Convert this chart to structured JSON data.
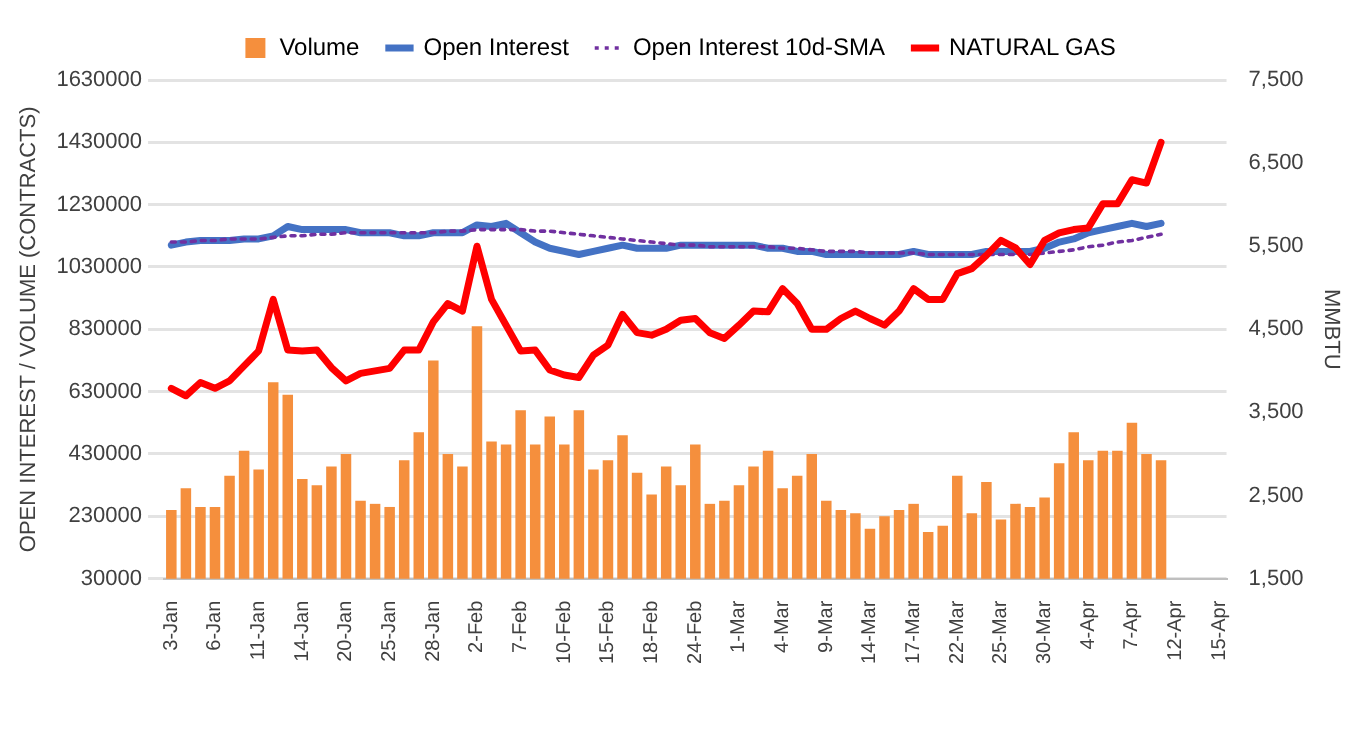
{
  "chart_data": {
    "type": "bar",
    "ylabel": "OPEN INTEREST / VOLUME (CONTRACTS)",
    "y2label": "MMBTU",
    "categories": [
      "3-Jan",
      null,
      null,
      "6-Jan",
      null,
      null,
      "11-Jan",
      null,
      null,
      "14-Jan",
      null,
      null,
      "20-Jan",
      null,
      null,
      "25-Jan",
      null,
      null,
      "28-Jan",
      null,
      null,
      "2-Feb",
      null,
      null,
      "7-Feb",
      null,
      null,
      "10-Feb",
      null,
      null,
      "15-Feb",
      null,
      null,
      "18-Feb",
      null,
      null,
      "24-Feb",
      null,
      null,
      "1-Mar",
      null,
      null,
      "4-Mar",
      null,
      null,
      "9-Mar",
      null,
      null,
      "14-Mar",
      null,
      null,
      "17-Mar",
      null,
      null,
      "22-Mar",
      null,
      null,
      "25-Mar",
      null,
      null,
      "30-Mar",
      null,
      null,
      "4-Apr",
      null,
      null,
      "7-Apr",
      null,
      null,
      "12-Apr",
      null,
      null,
      "15-Apr"
    ],
    "series": [
      {
        "name": "Volume",
        "color": "#f58f3d",
        "values": [
          250000,
          320000,
          260000,
          260000,
          360000,
          440000,
          380000,
          660000,
          620000,
          350000,
          330000,
          390000,
          430000,
          280000,
          270000,
          260000,
          410000,
          500000,
          730000,
          430000,
          390000,
          840000,
          470000,
          460000,
          570000,
          460000,
          550000,
          460000,
          570000,
          380000,
          410000,
          490000,
          370000,
          300000,
          390000,
          330000,
          460000,
          270000,
          280000,
          330000,
          390000,
          440000,
          320000,
          360000,
          430000,
          280000,
          250000,
          240000,
          190000,
          230000,
          250000,
          270000,
          180000,
          200000,
          360000,
          240000,
          340000,
          220000,
          270000,
          260000,
          290000,
          400000,
          500000,
          410000,
          440000,
          440000,
          530000,
          430000,
          410000,
          null,
          null,
          null,
          null
        ]
      },
      {
        "name": "Open Interest",
        "type": "line",
        "color": "#4472c4",
        "line_style": "solid",
        "values": [
          1100000,
          1110000,
          1115000,
          1115000,
          1115000,
          1120000,
          1120000,
          1130000,
          1160000,
          1150000,
          1150000,
          1150000,
          1150000,
          1140000,
          1140000,
          1140000,
          1130000,
          1130000,
          1140000,
          1140000,
          1140000,
          1165000,
          1160000,
          1170000,
          1140000,
          1110000,
          1090000,
          1080000,
          1070000,
          1080000,
          1090000,
          1100000,
          1090000,
          1090000,
          1090000,
          1100000,
          1100000,
          1100000,
          1100000,
          1100000,
          1100000,
          1090000,
          1090000,
          1080000,
          1080000,
          1070000,
          1070000,
          1070000,
          1070000,
          1070000,
          1070000,
          1080000,
          1070000,
          1070000,
          1070000,
          1070000,
          1080000,
          1080000,
          1080000,
          1080000,
          1090000,
          1110000,
          1120000,
          1140000,
          1150000,
          1160000,
          1170000,
          1160000,
          1170000,
          null,
          null,
          null,
          null
        ]
      },
      {
        "name": "Open Interest 10d-SMA",
        "type": "line",
        "color": "#7030a0",
        "line_style": "dotted",
        "values": [
          1110000,
          1110000,
          1115000,
          1115000,
          1120000,
          1120000,
          1120000,
          1125000,
          1130000,
          1130000,
          1135000,
          1135000,
          1140000,
          1140000,
          1140000,
          1140000,
          1140000,
          1140000,
          1140000,
          1145000,
          1145000,
          1150000,
          1150000,
          1150000,
          1150000,
          1145000,
          1145000,
          1140000,
          1135000,
          1130000,
          1125000,
          1120000,
          1115000,
          1110000,
          1105000,
          1100000,
          1100000,
          1095000,
          1095000,
          1095000,
          1095000,
          1095000,
          1090000,
          1090000,
          1085000,
          1080000,
          1080000,
          1080000,
          1075000,
          1075000,
          1075000,
          1075000,
          1070000,
          1070000,
          1070000,
          1070000,
          1070000,
          1070000,
          1070000,
          1070000,
          1075000,
          1080000,
          1085000,
          1095000,
          1100000,
          1110000,
          1115000,
          1125000,
          1135000,
          null,
          null,
          null,
          null
        ]
      },
      {
        "name": "NATURAL GAS",
        "type": "line",
        "color": "#ff0000",
        "line_style": "solid",
        "axis": "y2",
        "values": [
          3790,
          3700,
          3860,
          3790,
          3880,
          4060,
          4240,
          4860,
          4250,
          4240,
          4250,
          4040,
          3880,
          3970,
          4000,
          4030,
          4250,
          4250,
          4590,
          4810,
          4720,
          5500,
          4860,
          4550,
          4240,
          4250,
          4010,
          3950,
          3920,
          4190,
          4310,
          4680,
          4460,
          4430,
          4500,
          4610,
          4630,
          4460,
          4390,
          4550,
          4720,
          4710,
          4990,
          4810,
          4500,
          4500,
          4630,
          4720,
          4630,
          4550,
          4720,
          4990,
          4860,
          4860,
          5170,
          5230,
          5390,
          5570,
          5480,
          5280,
          5570,
          5660,
          5700,
          5720,
          6010,
          6010,
          6300,
          6260,
          6750,
          null,
          null,
          null,
          null
        ]
      }
    ],
    "ylim": [
      30000,
      1630000
    ],
    "yticks": [
      30000,
      230000,
      430000,
      630000,
      830000,
      1030000,
      1230000,
      1430000,
      1630000
    ],
    "y2lim": [
      1500,
      7500
    ],
    "y2ticks": [
      {
        "value": 1500,
        "label": "1,500"
      },
      {
        "value": 2500,
        "label": "2,500"
      },
      {
        "value": 3500,
        "label": "3,500"
      },
      {
        "value": 4500,
        "label": "4,500"
      },
      {
        "value": 5500,
        "label": "5,500"
      },
      {
        "value": 6500,
        "label": "6,500"
      },
      {
        "value": 7500,
        "label": "7,500"
      }
    ],
    "grid": "y",
    "legend": "top",
    "marker": "none"
  }
}
